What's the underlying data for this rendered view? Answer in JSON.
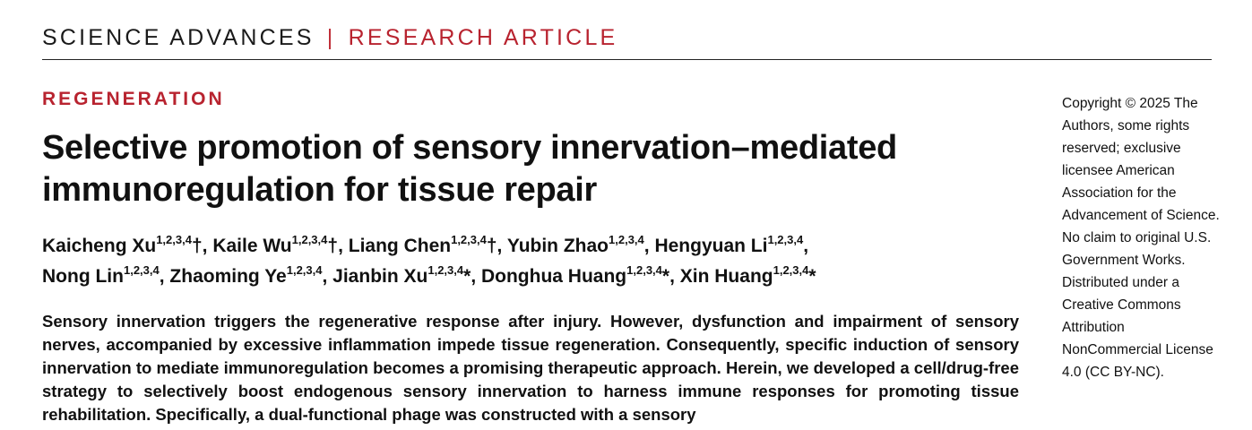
{
  "header": {
    "journal": "SCIENCE ADVANCES",
    "separator": "|",
    "article_type": "RESEARCH ARTICLE"
  },
  "section": "REGENERATION",
  "title": "Selective promotion of sensory innervation–mediated immunoregulation for tissue repair",
  "authors": [
    {
      "name": "Kaicheng Xu",
      "aff": "1,2,3,4",
      "mark": "†",
      "sep": ", "
    },
    {
      "name": "Kaile Wu",
      "aff": "1,2,3,4",
      "mark": "†",
      "sep": ", "
    },
    {
      "name": "Liang Chen",
      "aff": "1,2,3,4",
      "mark": "†",
      "sep": ", "
    },
    {
      "name": "Yubin Zhao",
      "aff": "1,2,3,4",
      "mark": "",
      "sep": ", "
    },
    {
      "name": "Hengyuan Li",
      "aff": "1,2,3,4",
      "mark": "",
      "sep": ", "
    },
    {
      "name": "Nong Lin",
      "aff": "1,2,3,4",
      "mark": "",
      "sep": ", "
    },
    {
      "name": "Zhaoming Ye",
      "aff": "1,2,3,4",
      "mark": "",
      "sep": ", "
    },
    {
      "name": "Jianbin Xu",
      "aff": "1,2,3,4",
      "mark": "*",
      "sep": ", "
    },
    {
      "name": "Donghua Huang",
      "aff": "1,2,3,4",
      "mark": "*",
      "sep": ", "
    },
    {
      "name": "Xin Huang",
      "aff": "1,2,3,4",
      "mark": "*",
      "sep": ""
    }
  ],
  "abstract": "Sensory innervation triggers the regenerative response after injury. However, dysfunction and impairment of sensory nerves, accompanied by excessive inflammation impede tissue regeneration. Consequently, specific induction of sensory innervation to mediate immunoregulation becomes a promising therapeutic approach. Herein, we developed a cell/drug-free strategy to selectively boost endogenous sensory innervation to harness immune responses for promoting tissue rehabilitation. Specifically, a dual-functional phage was constructed with a sensory",
  "copyright": "Copyright © 2025 The Authors, some rights reserved; exclusive licensee American Association for the Advancement of Science. No claim to original U.S. Government Works. Distributed under a Creative Commons Attribution NonCommercial License 4.0 (CC BY-NC)."
}
